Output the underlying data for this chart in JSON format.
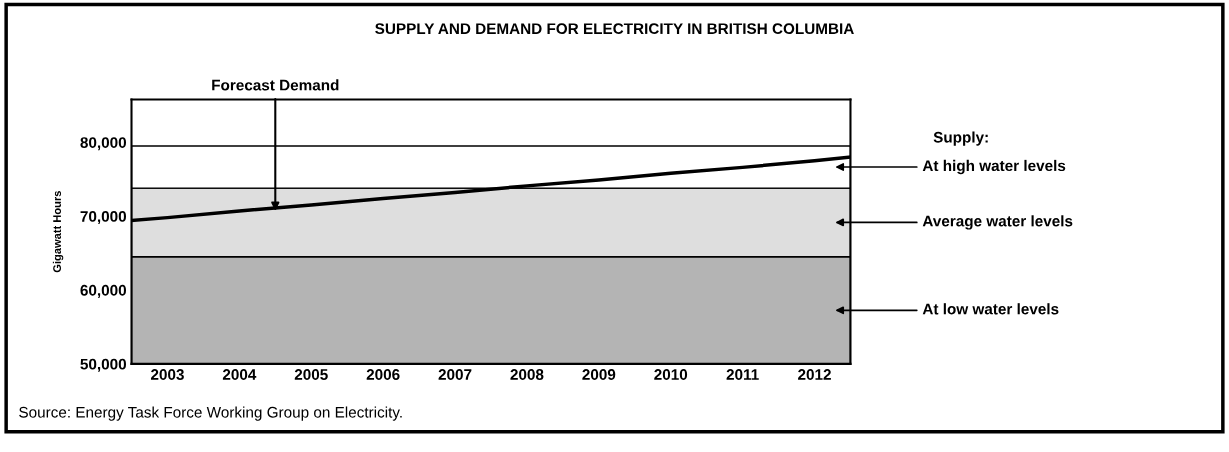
{
  "chart_data": {
    "type": "line",
    "title": "SUPPLY AND DEMAND FOR ELECTRICITY IN BRITISH COLUMBIA",
    "ylabel": "Gigawatt Hours",
    "x": [
      2002.5,
      2003,
      2004,
      2005,
      2006,
      2007,
      2008,
      2009,
      2010,
      2011,
      2012,
      2012.5
    ],
    "series": [
      {
        "color": "#000000",
        "values": [
          69400,
          69800,
          70700,
          71500,
          72400,
          73200,
          74100,
          74900,
          75800,
          76600,
          77500,
          78000
        ]
      }
    ],
    "bands": [
      {
        "axis": "y",
        "from": 50000,
        "to": 64500,
        "label": "At low water levels",
        "color": "#b4b4b4"
      },
      {
        "axis": "y",
        "from": 64500,
        "to": 73800,
        "label": "Average water levels",
        "color": "#dedede"
      },
      {
        "axis": "y",
        "from": 73800,
        "to": 79500,
        "label": "At high water levels",
        "color": "#ffffff"
      }
    ],
    "xlim": [
      2002.5,
      2012.5
    ],
    "xticks": [
      2003,
      2004,
      2005,
      2006,
      2007,
      2008,
      2009,
      2010,
      2011,
      2012
    ],
    "ylim": [
      50000,
      85800
    ],
    "yticks": [
      {
        "value": 50000,
        "label": "50,000"
      },
      {
        "value": 60000,
        "label": "60,000"
      },
      {
        "value": 70000,
        "label": "70,000"
      },
      {
        "value": 80000,
        "label": "80,000"
      }
    ],
    "grid": false,
    "legend": false,
    "marker": "none",
    "line_style": "solid",
    "legend_title": "Supply:",
    "annotations": [
      {
        "text": "Forecast Demand",
        "x": 2004.5,
        "y": 70700
      },
      "Source: Energy Task Force Working Group on Electricity."
    ]
  }
}
